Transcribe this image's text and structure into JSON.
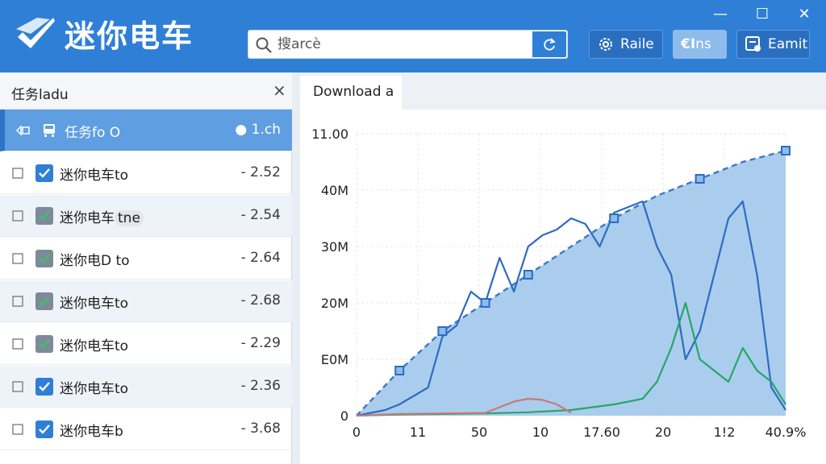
{
  "app": {
    "title": "迷你电车"
  },
  "search": {
    "placeholder": "搜arcè"
  },
  "toolbar": {
    "rate_label": "Raile",
    "ens_label": "ns",
    "ens_icon_text": "€I",
    "exit_label": "Eamit"
  },
  "window": {
    "minimize": "—",
    "maximize": "☐",
    "close": "✕"
  },
  "panel": {
    "title": "任务ladu",
    "close": "×"
  },
  "tasks": [
    {
      "name": "任务fo O",
      "value": "● 1.ch",
      "check": "none",
      "icon": "train-icon",
      "selected": true
    },
    {
      "name": "迷你电车to",
      "value": "- 2.52",
      "check": "blue",
      "icon": "doc-icon"
    },
    {
      "name": "迷你电车",
      "tag": "tne",
      "value": "- 2.54",
      "check": "grey",
      "icon": "checkbox-icon"
    },
    {
      "name": "迷你电D to",
      "value": "- 2.64",
      "check": "grey",
      "icon": "checkbox-icon"
    },
    {
      "name": "迷你电车to",
      "value": "- 2.68",
      "check": "grey",
      "icon": "checkbox-icon"
    },
    {
      "name": "迷你电车to",
      "value": "- 2.29",
      "check": "grey",
      "icon": "checkbox-icon"
    },
    {
      "name": "迷你电车to",
      "value": "- 2.36",
      "check": "blue",
      "icon": "checkbox-icon"
    },
    {
      "name": "迷你电车b",
      "value": "- 3.68",
      "check": "blue",
      "icon": "checkbox-icon"
    }
  ],
  "tab": {
    "label": "Download a"
  },
  "colors": {
    "accent": "#2f7fd6",
    "area": "#9cc4ea",
    "green": "#27a56b",
    "red": "#c77a7a"
  },
  "chart_data": {
    "type": "area",
    "title": "",
    "xlabel": "",
    "ylabel": "",
    "y_tick_labels": [
      "0",
      "E0M",
      "20M",
      "30M",
      "40M",
      "11.00"
    ],
    "x_tick_labels": [
      "0",
      "11",
      "50",
      "10",
      "17.60",
      "20",
      "1!2",
      "40.9%"
    ],
    "grid": true,
    "ylim": [
      0,
      50
    ],
    "series": [
      {
        "role": "dashed-envelope",
        "x": [
          0,
          3,
          6,
          9,
          12,
          15,
          18,
          21,
          24,
          27,
          30
        ],
        "y": [
          0,
          8,
          15,
          20,
          25,
          30,
          35,
          39,
          42,
          45,
          47
        ]
      },
      {
        "role": "blue-line",
        "x": [
          0,
          2,
          3,
          5,
          6,
          7,
          8,
          9,
          10,
          11,
          12,
          13,
          14,
          15,
          16,
          17,
          18,
          19,
          20,
          21,
          22,
          23,
          24,
          25,
          26,
          27,
          28,
          29,
          30
        ],
        "y": [
          0,
          1,
          2,
          5,
          14,
          16,
          22,
          20,
          28,
          22,
          30,
          32,
          33,
          35,
          34,
          30,
          36,
          37,
          38,
          30,
          25,
          10,
          15,
          25,
          35,
          38,
          25,
          5,
          1
        ]
      },
      {
        "role": "green-line",
        "x": [
          0,
          3,
          6,
          9,
          12,
          15,
          18,
          20,
          21,
          22,
          23,
          24,
          25,
          26,
          27,
          28,
          29,
          30
        ],
        "y": [
          0,
          0.2,
          0.3,
          0.4,
          0.6,
          1,
          2,
          3,
          6,
          12,
          20,
          10,
          8,
          6,
          12,
          8,
          6,
          2
        ]
      },
      {
        "role": "red-line",
        "x": [
          0,
          3,
          6,
          9,
          10,
          11,
          12,
          13,
          14,
          15
        ],
        "y": [
          0,
          0.3,
          0.4,
          0.5,
          1.5,
          2.5,
          3,
          2.8,
          2,
          0.5
        ]
      }
    ]
  }
}
